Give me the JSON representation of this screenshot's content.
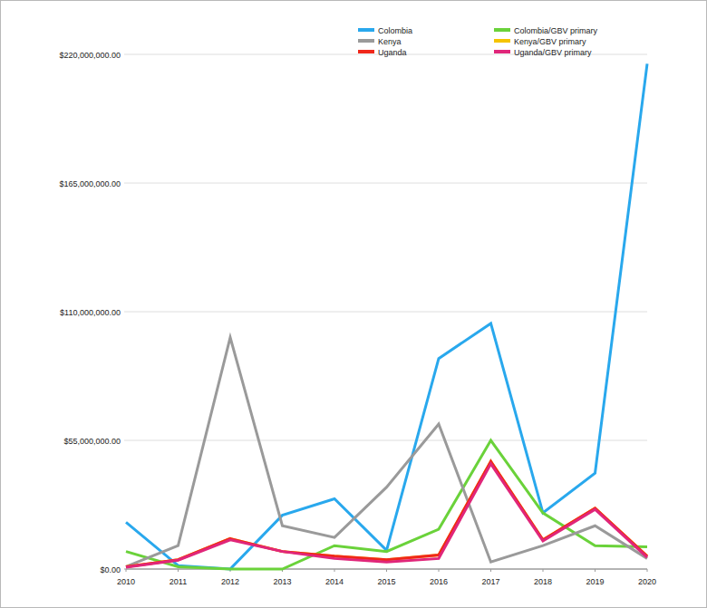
{
  "chart_data": {
    "type": "line",
    "x": [
      2010,
      2011,
      2012,
      2013,
      2014,
      2015,
      2016,
      2017,
      2018,
      2019,
      2020
    ],
    "xlim": [
      2010,
      2020
    ],
    "xticks": [
      2010,
      2011,
      2012,
      2013,
      2014,
      2015,
      2016,
      2017,
      2018,
      2019,
      2020
    ],
    "ylim": [
      0,
      220000000
    ],
    "yticks": [
      {
        "value": 0,
        "label": "$0.00"
      },
      {
        "value": 55000000,
        "label": "$55,000,000.00"
      },
      {
        "value": 110000000,
        "label": "$110,000,000.00"
      },
      {
        "value": 165000000,
        "label": "$165,000,000.00"
      },
      {
        "value": 220000000,
        "label": "$220,000,000.00"
      }
    ],
    "grid": true,
    "legend": "top",
    "series": [
      {
        "name": "Colombia",
        "color": "#29a8ed",
        "values": [
          20000000,
          1500000,
          0,
          23000000,
          30000000,
          8000000,
          90000000,
          105000000,
          24000000,
          41000000,
          216000000
        ]
      },
      {
        "name": "Colombia/GBV primary",
        "color": "#6ad23a",
        "values": [
          7500000,
          1000000,
          0,
          0,
          10000000,
          7500000,
          17000000,
          55000000,
          24000000,
          10000000,
          9500000
        ]
      },
      {
        "name": "Kenya",
        "color": "#9a9a9a",
        "values": [
          1000000,
          10000000,
          99000000,
          18500000,
          13500000,
          35000000,
          62000000,
          3000000,
          10000000,
          18500000,
          4500000
        ]
      },
      {
        "name": "Kenya/GBV primary",
        "color": "#f5c400",
        "values": [
          1000000,
          4000000,
          13000000,
          7500000,
          5500000,
          4000000,
          6000000,
          46000000,
          12500000,
          26000000,
          5500000
        ]
      },
      {
        "name": "Uganda",
        "color": "#f0271a",
        "values": [
          1000000,
          4000000,
          13000000,
          7500000,
          5500000,
          4000000,
          6000000,
          46000000,
          12500000,
          26000000,
          5500000
        ]
      },
      {
        "name": "Uganda/GBV primary",
        "color": "#e0267a",
        "values": [
          800000,
          3800000,
          12500000,
          7500000,
          4500000,
          3000000,
          4500000,
          45000000,
          12000000,
          25500000,
          5000000
        ]
      }
    ]
  }
}
